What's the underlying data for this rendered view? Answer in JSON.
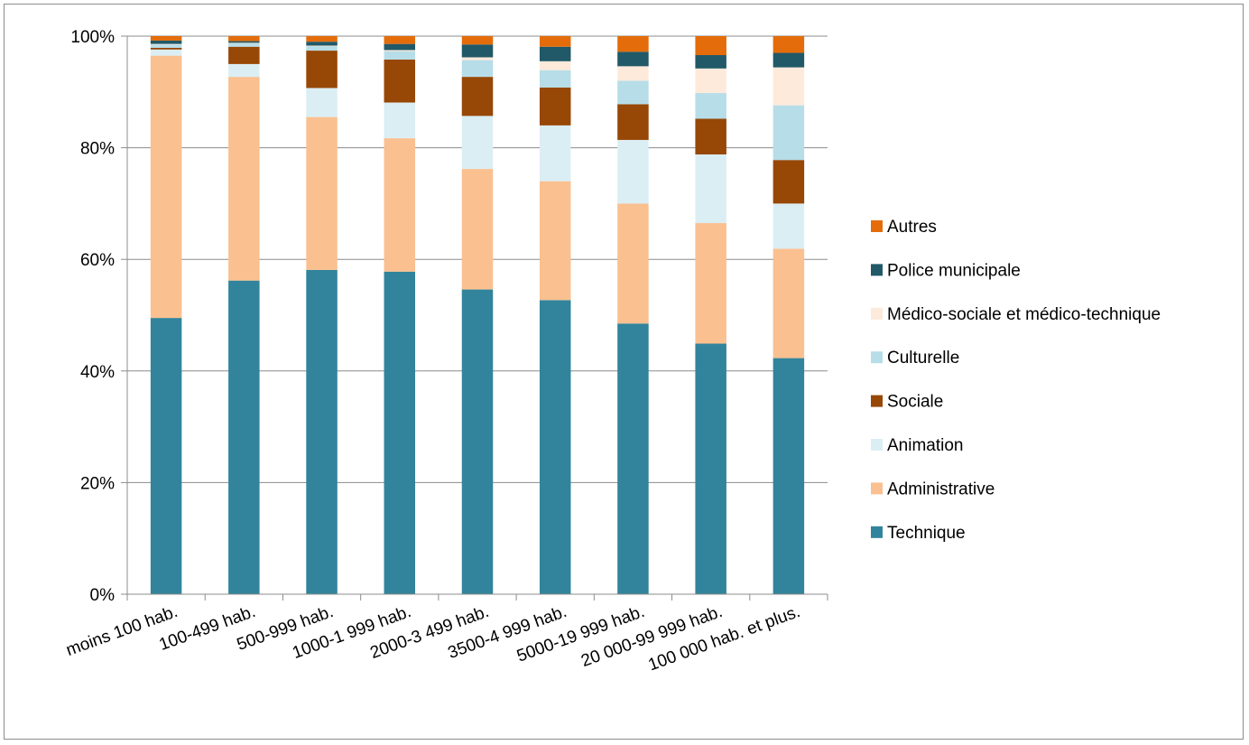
{
  "chart_data": {
    "type": "bar",
    "stacked": true,
    "percent_stacked": true,
    "title": "",
    "xlabel": "",
    "ylabel": "",
    "ylim": [
      0,
      100
    ],
    "y_ticks": [
      0,
      20,
      40,
      60,
      80,
      100
    ],
    "y_tick_labels": [
      "0%",
      "20%",
      "40%",
      "60%",
      "80%",
      "100%"
    ],
    "grid": true,
    "legend_position": "right",
    "categories": [
      "moins 100 hab.",
      "100-499 hab.",
      "500-999 hab.",
      "1000-1 999 hab.",
      "2000-3 499 hab.",
      "3500-4 999 hab.",
      "5000-19 999 hab.",
      "20 000-99 999 hab.",
      "100 000 hab. et plus."
    ],
    "series": [
      {
        "name": "Technique",
        "color": "#31849b",
        "values": [
          49.5,
          56.2,
          58.1,
          57.8,
          54.6,
          52.7,
          48.5,
          44.9,
          42.3
        ]
      },
      {
        "name": "Administrative",
        "color": "#fac090",
        "values": [
          47.0,
          36.5,
          27.4,
          23.9,
          21.6,
          21.3,
          21.5,
          21.6,
          19.6
        ]
      },
      {
        "name": "Animation",
        "color": "#dbeef4",
        "values": [
          1.1,
          2.3,
          5.2,
          6.4,
          9.5,
          10.0,
          11.4,
          12.3,
          8.1
        ]
      },
      {
        "name": "Sociale",
        "color": "#974706",
        "values": [
          0.3,
          3.1,
          6.7,
          7.7,
          7.0,
          6.8,
          6.4,
          6.4,
          7.8
        ]
      },
      {
        "name": "Culturelle",
        "color": "#b7dde8",
        "values": [
          0.6,
          0.6,
          0.8,
          1.5,
          3.0,
          3.1,
          4.2,
          4.6,
          9.8
        ]
      },
      {
        "name": "Médico-sociale et médico-technique",
        "color": "#fdeada",
        "values": [
          0.1,
          0.1,
          0.1,
          0.2,
          0.5,
          1.6,
          2.6,
          4.4,
          6.8
        ]
      },
      {
        "name": "Police municipale",
        "color": "#215968",
        "values": [
          0.6,
          0.3,
          0.7,
          1.1,
          2.3,
          2.6,
          2.6,
          2.4,
          2.6
        ]
      },
      {
        "name": "Autres",
        "color": "#e46c0a",
        "values": [
          0.8,
          0.9,
          1.0,
          1.4,
          1.5,
          1.9,
          2.8,
          3.4,
          3.0
        ]
      }
    ]
  }
}
